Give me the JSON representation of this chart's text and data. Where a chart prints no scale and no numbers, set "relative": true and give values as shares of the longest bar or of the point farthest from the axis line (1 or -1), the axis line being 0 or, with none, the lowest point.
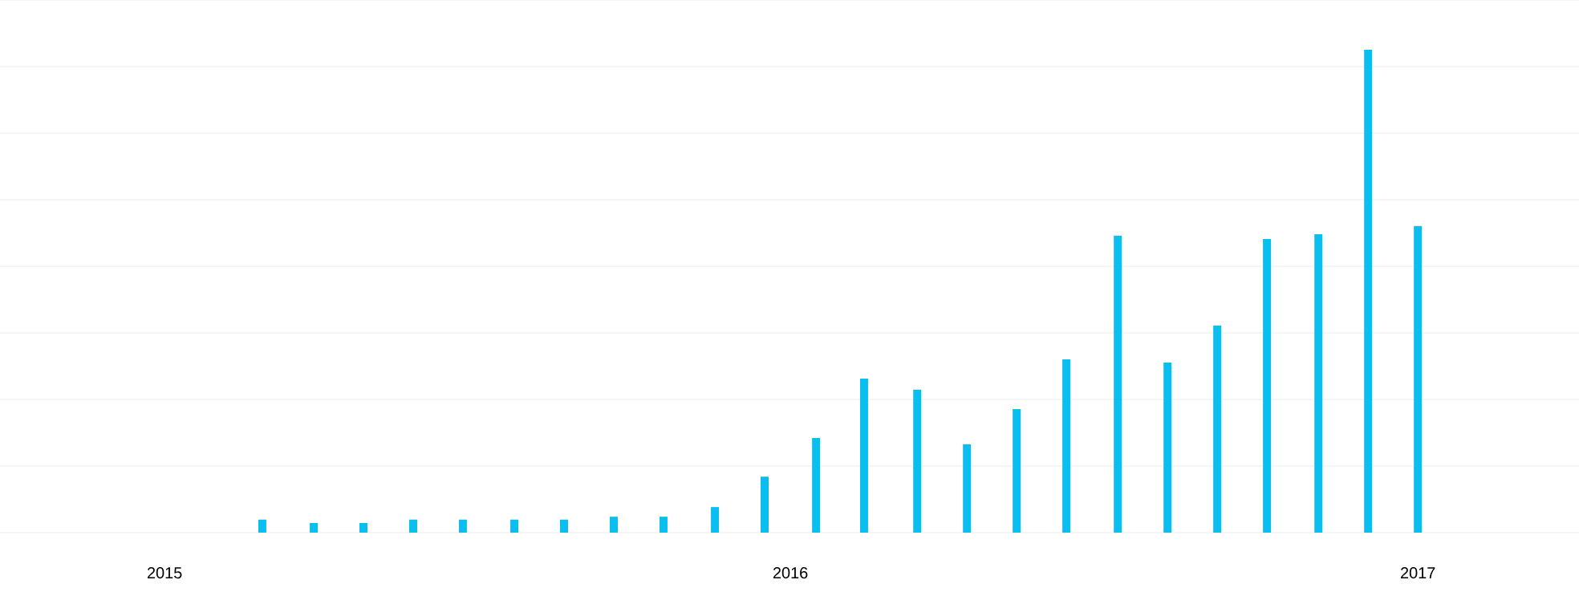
{
  "chart_data": {
    "type": "bar",
    "relative": true,
    "color": "#0abff0",
    "grid": "y",
    "x": [
      "2015-02-27",
      "2015-03-29",
      "2015-04-27",
      "2015-05-26",
      "2015-06-24",
      "2015-07-24",
      "2015-08-22",
      "2015-09-20",
      "2015-10-19",
      "2015-11-18",
      "2015-12-17",
      "2016-01-16",
      "2016-02-13",
      "2016-03-15",
      "2016-04-13",
      "2016-05-12",
      "2016-06-10",
      "2016-07-10",
      "2016-08-08",
      "2016-09-06",
      "2016-10-05",
      "2016-11-04",
      "2016-12-03",
      "2017-01-01"
    ],
    "values": [
      0.027,
      0.02,
      0.02,
      0.027,
      0.027,
      0.027,
      0.027,
      0.033,
      0.033,
      0.053,
      0.116,
      0.196,
      0.319,
      0.296,
      0.183,
      0.256,
      0.359,
      0.615,
      0.352,
      0.429,
      0.608,
      0.618,
      1,
      0.635
    ],
    "xlim": [
      "2014-09-27",
      "2017-04-05"
    ],
    "xticks": [
      "2015",
      "2016",
      "2017"
    ]
  }
}
